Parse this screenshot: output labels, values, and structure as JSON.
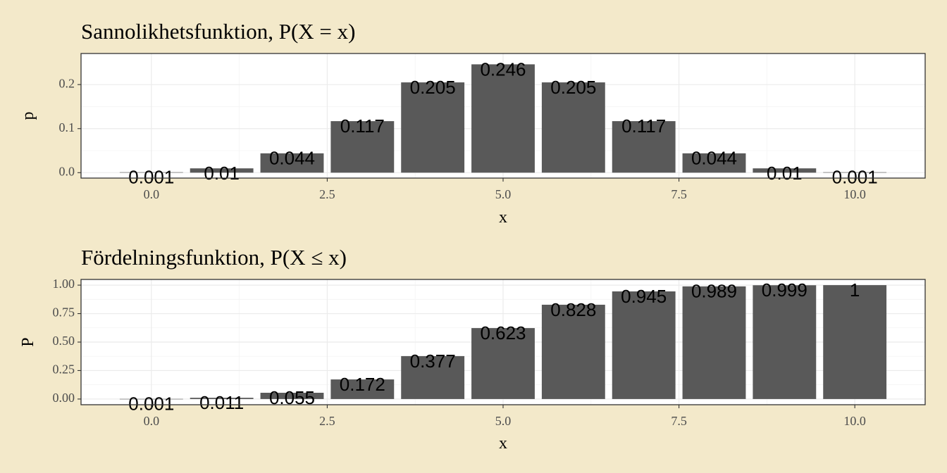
{
  "style": {
    "background": "#f3e9ca",
    "panel": "#ffffff",
    "bar": "#595959",
    "border": "#333333",
    "tick_text": "#4d4d4d"
  },
  "chart_data": [
    {
      "type": "bar",
      "title": "Sannolikhetsfunktion, P(X = x)",
      "xlabel": "x",
      "ylabel": "p",
      "x": [
        0,
        1,
        2,
        3,
        4,
        5,
        6,
        7,
        8,
        9,
        10
      ],
      "values": [
        0.000977,
        0.00977,
        0.0439,
        0.117,
        0.205,
        0.246,
        0.205,
        0.117,
        0.0439,
        0.00977,
        0.000977
      ],
      "labels": [
        "0.001",
        "0.01",
        "0.044",
        "0.117",
        "0.205",
        "0.246",
        "0.205",
        "0.117",
        "0.044",
        "0.01",
        "0.001"
      ],
      "xlim": [
        -1,
        11
      ],
      "ylim": [
        -0.0123,
        0.2706
      ],
      "xticks": [
        0,
        2.5,
        5,
        7.5,
        10
      ],
      "xtick_labels": [
        "0.0",
        "2.5",
        "5.0",
        "7.5",
        "10.0"
      ],
      "yticks": [
        0,
        0.1,
        0.2
      ],
      "ytick_labels": [
        "0.0",
        "0.1",
        "0.2"
      ],
      "grid": true
    },
    {
      "type": "bar",
      "title": "Fördelningsfunktion, P(X ≤ x)",
      "xlabel": "x",
      "ylabel": "P",
      "x": [
        0,
        1,
        2,
        3,
        4,
        5,
        6,
        7,
        8,
        9,
        10
      ],
      "values": [
        0.001,
        0.011,
        0.055,
        0.172,
        0.377,
        0.623,
        0.828,
        0.945,
        0.989,
        0.999,
        1
      ],
      "labels": [
        "0.001",
        "0.011",
        "0.055",
        "0.172",
        "0.377",
        "0.623",
        "0.828",
        "0.945",
        "0.989",
        "0.999",
        "1"
      ],
      "xlim": [
        -1,
        11
      ],
      "ylim": [
        -0.05,
        1.05
      ],
      "xticks": [
        0,
        2.5,
        5,
        7.5,
        10
      ],
      "xtick_labels": [
        "0.0",
        "2.5",
        "5.0",
        "7.5",
        "10.0"
      ],
      "yticks": [
        0,
        0.25,
        0.5,
        0.75,
        1
      ],
      "ytick_labels": [
        "0.00",
        "0.25",
        "0.50",
        "0.75",
        "1.00"
      ],
      "grid": true
    }
  ]
}
